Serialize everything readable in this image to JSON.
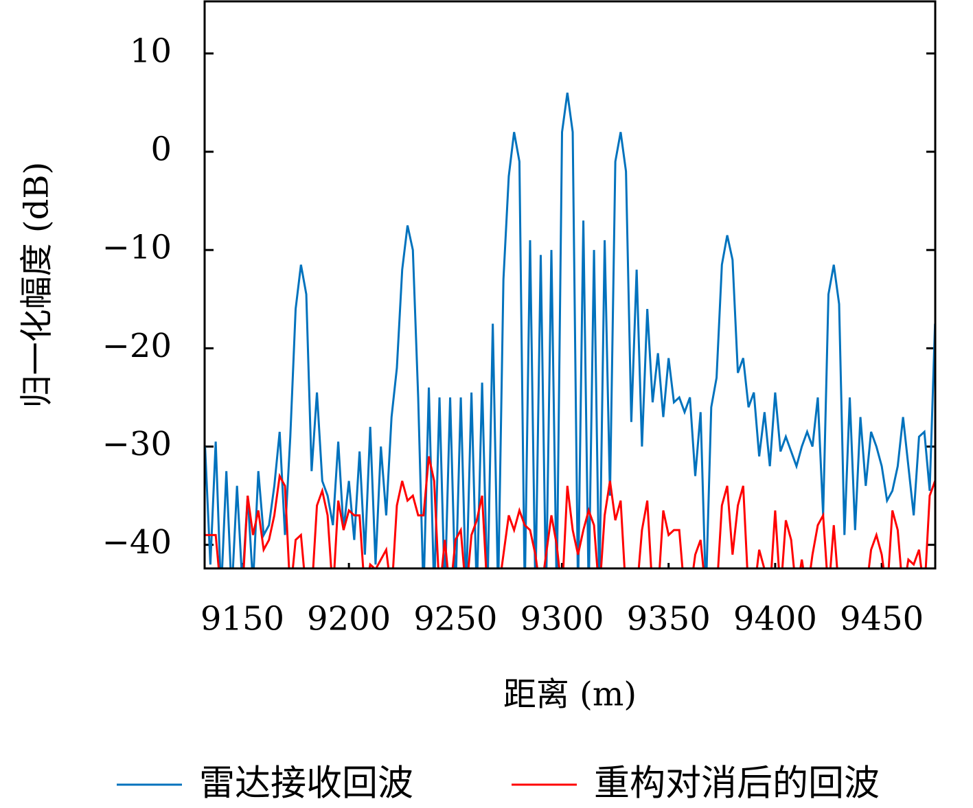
{
  "chart_data": {
    "type": "line",
    "xlabel": "距离 (m)",
    "ylabel": "归一化幅度 (dB)",
    "xlim": [
      9132.3,
      9475.1
    ],
    "ylim": [
      -42.4,
      15.3
    ],
    "xticks": [
      9150,
      9200,
      9250,
      9300,
      9350,
      9400,
      9450
    ],
    "yticks": [
      10,
      0,
      {
        "value": -10,
        "label": "−10"
      },
      {
        "value": -20,
        "label": "−20"
      },
      {
        "value": -30,
        "label": "−30"
      },
      {
        "value": -40,
        "label": "−40"
      }
    ],
    "legend": "bottom",
    "x": [
      9132.5,
      9135,
      9137.5,
      9140,
      9142.5,
      9145,
      9147.5,
      9150,
      9152.5,
      9155,
      9157.5,
      9160,
      9162.5,
      9165,
      9167.5,
      9170,
      9172.5,
      9175,
      9177.5,
      9180,
      9182.5,
      9185,
      9187.5,
      9190,
      9192.5,
      9195,
      9197.5,
      9200,
      9202.5,
      9205,
      9207.5,
      9210,
      9212.5,
      9215,
      9217.5,
      9220,
      9222.5,
      9225,
      9227.5,
      9230,
      9232.5,
      9235,
      9237.5,
      9240,
      9242.5,
      9245,
      9247.5,
      9250,
      9252.5,
      9255,
      9257.5,
      9260,
      9262.5,
      9265,
      9267.5,
      9270,
      9272.5,
      9275,
      9277.5,
      9280,
      9282.5,
      9285,
      9287.5,
      9290,
      9292.5,
      9295,
      9297.5,
      9300,
      9302.5,
      9305,
      9307.5,
      9310,
      9312.5,
      9315,
      9317.5,
      9320,
      9322.5,
      9325,
      9327.5,
      9330,
      9332.5,
      9335,
      9337.5,
      9340,
      9342.5,
      9345,
      9347.5,
      9350,
      9352.5,
      9355,
      9357.5,
      9360,
      9362.5,
      9365,
      9367.5,
      9370,
      9372.5,
      9375,
      9377.5,
      9380,
      9382.5,
      9385,
      9387.5,
      9390,
      9392.5,
      9395,
      9397.5,
      9400,
      9402.5,
      9405,
      9407.5,
      9410,
      9412.5,
      9415,
      9417.5,
      9420,
      9422.5,
      9425,
      9427.5,
      9430,
      9432.5,
      9435,
      9437.5,
      9440,
      9442.5,
      9445,
      9447.5,
      9450,
      9452.5,
      9455,
      9457.5,
      9460,
      9462.5,
      9465,
      9467.5,
      9470,
      9472.5,
      9475
    ],
    "series": [
      {
        "name": "雷达接收回波",
        "color": "#0072bd",
        "values": [
          -30,
          -42,
          -29.5,
          -45,
          -32.5,
          -45,
          -34,
          -44,
          -35,
          -44,
          -32.5,
          -39,
          -38,
          -34,
          -28.5,
          -39,
          -29,
          -16,
          -11.5,
          -14.5,
          -32.5,
          -24.5,
          -33.5,
          -35,
          -38,
          -29.5,
          -38.5,
          -33.5,
          -39.5,
          -30.5,
          -41,
          -28,
          -42,
          -30,
          -37,
          -27,
          -22,
          -12,
          -7.5,
          -10,
          -25,
          -45,
          -24,
          -45,
          -25,
          -45,
          -25,
          -45,
          -25,
          -45,
          -24.5,
          -45,
          -23.5,
          -45,
          -17.5,
          -45,
          -13,
          -2.5,
          2,
          -1,
          -45,
          -9,
          -45,
          -10.5,
          -45,
          -10,
          -45,
          2,
          6,
          2,
          -45,
          -7,
          -45,
          -10,
          -45,
          -9,
          -35,
          -1,
          2,
          -2,
          -27.5,
          -12,
          -30,
          -16,
          -25.5,
          -20.5,
          -27,
          -21,
          -25.5,
          -25,
          -26.5,
          -25,
          -33,
          -26.5,
          -45,
          -26,
          -23,
          -11.5,
          -8.5,
          -11,
          -22.5,
          -21,
          -26,
          -24.5,
          -31,
          -26.5,
          -32,
          -24.5,
          -30.5,
          -29,
          -30.5,
          -32,
          -30,
          -28.5,
          -30,
          -25,
          -37,
          -14.5,
          -11.5,
          -15.5,
          -39,
          -25,
          -38.5,
          -27,
          -34,
          -28.5,
          -30,
          -32,
          -35.5,
          -34.5,
          -32,
          -27,
          -32,
          -37,
          -29,
          -28.5,
          -34.5,
          -17.5
        ]
      },
      {
        "name": "重构对消后的回波",
        "color": "#ff0000",
        "values": [
          -39,
          -39,
          -39,
          -45,
          -45,
          -45,
          -45,
          -45,
          -35,
          -39,
          -36.5,
          -40.5,
          -39.5,
          -37,
          -33,
          -34,
          -45,
          -39.5,
          -39,
          -45,
          -45,
          -36,
          -34.5,
          -37,
          -45,
          -35.5,
          -38.5,
          -36.5,
          -37,
          -37,
          -45,
          -42,
          -42.5,
          -41.5,
          -40.5,
          -45,
          -36,
          -33.5,
          -35.5,
          -35,
          -37,
          -37,
          -31,
          -33.5,
          -45,
          -39.5,
          -45,
          -39.5,
          -38.5,
          -45,
          -39,
          -37.5,
          -35,
          -45,
          -45,
          -45,
          -41,
          -37,
          -38.5,
          -36.5,
          -38,
          -38.5,
          -41,
          -45,
          -41,
          -37,
          -40,
          -45,
          -34,
          -38.5,
          -41,
          -38.5,
          -36.5,
          -38,
          -45,
          -37,
          -33.5,
          -37.5,
          -35.5,
          -45,
          -45,
          -45,
          -38.5,
          -35.5,
          -45,
          -45,
          -36.5,
          -39,
          -38.5,
          -38.5,
          -45,
          -45,
          -41,
          -39.5,
          -45,
          -45,
          -45,
          -36,
          -34,
          -41,
          -36,
          -34,
          -45,
          -45,
          -40.5,
          -42.5,
          -45,
          -36.5,
          -45,
          -37.5,
          -39.5,
          -45,
          -41.5,
          -45,
          -41,
          -38,
          -37,
          -45,
          -38,
          -45,
          -45,
          -45,
          -45,
          -45,
          -45,
          -40.5,
          -39,
          -41,
          -45,
          -36.5,
          -38.5,
          -45,
          -41.5,
          -42,
          -40.5,
          -45,
          -35,
          -33.5
        ]
      }
    ]
  }
}
